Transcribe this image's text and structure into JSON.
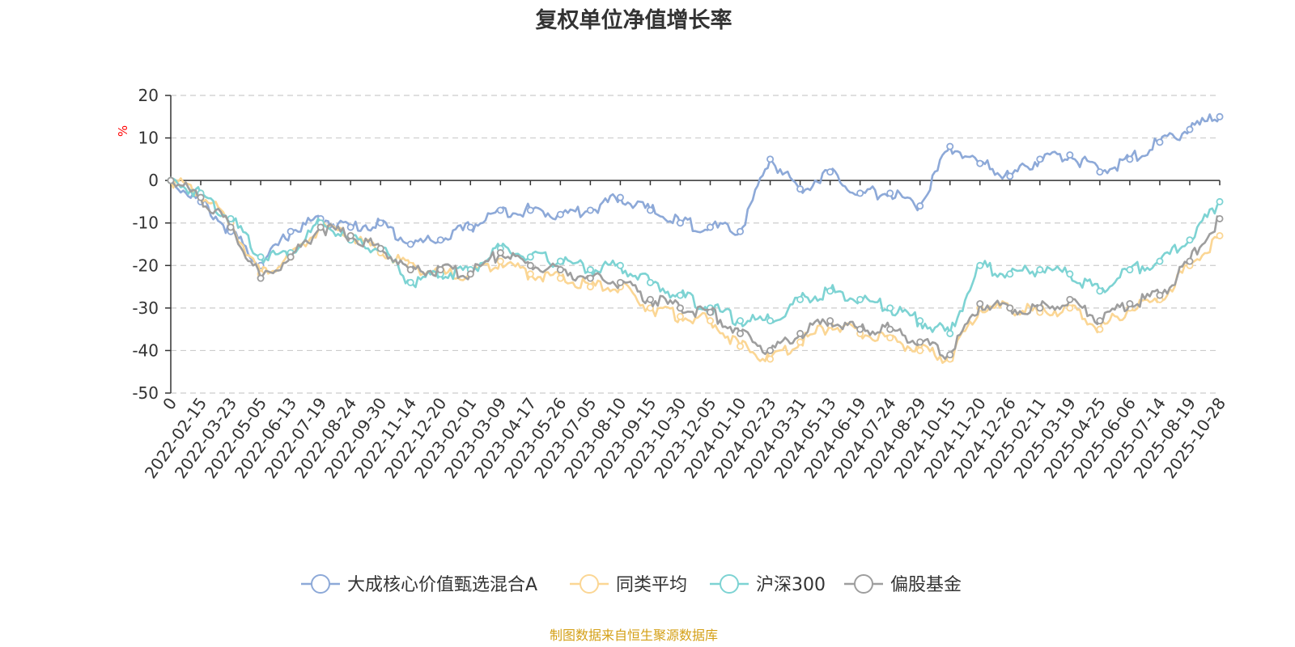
{
  "chart_data": {
    "type": "line",
    "title": "复权单位净值增长率",
    "ylabel": "%",
    "ylim": [
      -50,
      20
    ],
    "yticks": [
      20,
      10,
      0,
      -10,
      -20,
      -30,
      -40,
      -50
    ],
    "grid": true,
    "legend_position": "bottom-center",
    "x": [
      "0",
      "2022-02-15",
      "2022-03-23",
      "2022-05-05",
      "2022-06-13",
      "2022-07-19",
      "2022-08-24",
      "2022-09-30",
      "2022-11-14",
      "2022-12-20",
      "2023-02-01",
      "2023-03-09",
      "2023-04-17",
      "2023-05-26",
      "2023-07-05",
      "2023-08-10",
      "2023-09-15",
      "2023-10-30",
      "2023-12-05",
      "2024-01-10",
      "2024-02-23",
      "2024-03-31",
      "2024-05-13",
      "2024-06-19",
      "2024-07-24",
      "2024-08-29",
      "2024-10-15",
      "2024-11-20",
      "2024-12-26",
      "2025-02-11",
      "2025-03-19",
      "2025-04-25",
      "2025-06-06",
      "2025-07-14",
      "2025-08-19",
      "2025-10-28"
    ],
    "series": [
      {
        "name": "大成核心价值甄选混合A",
        "color": "#8da9d8",
        "values": [
          0,
          -5,
          -12,
          -20,
          -12,
          -9,
          -11,
          -10,
          -15,
          -14,
          -11,
          -7,
          -7,
          -8,
          -7,
          -4,
          -7,
          -10,
          -11,
          -12,
          5,
          -2,
          2,
          -3,
          -3,
          -6,
          8,
          4,
          1,
          5,
          6,
          2,
          5,
          9,
          12,
          15
        ]
      },
      {
        "name": "同类平均",
        "color": "#fbd694",
        "values": [
          0,
          -3,
          -10,
          -22,
          -18,
          -11,
          -13,
          -17,
          -20,
          -22,
          -22,
          -19,
          -22,
          -23,
          -25,
          -25,
          -30,
          -32,
          -33,
          -39,
          -42,
          -38,
          -34,
          -36,
          -37,
          -40,
          -42,
          -30,
          -30,
          -31,
          -30,
          -35,
          -30,
          -28,
          -20,
          -13
        ]
      },
      {
        "name": "沪深300",
        "color": "#7dd3d3",
        "values": [
          0,
          -3,
          -9,
          -18,
          -17,
          -10,
          -14,
          -16,
          -24,
          -22,
          -21,
          -16,
          -18,
          -19,
          -21,
          -20,
          -24,
          -27,
          -30,
          -33,
          -33,
          -28,
          -26,
          -28,
          -30,
          -33,
          -36,
          -20,
          -22,
          -21,
          -22,
          -26,
          -21,
          -19,
          -14,
          -5
        ]
      },
      {
        "name": "偏股基金",
        "color": "#9e9e9e",
        "values": [
          0,
          -4,
          -11,
          -23,
          -18,
          -11,
          -13,
          -16,
          -21,
          -21,
          -22,
          -17,
          -20,
          -21,
          -23,
          -24,
          -28,
          -30,
          -31,
          -36,
          -40,
          -36,
          -33,
          -35,
          -35,
          -38,
          -41,
          -29,
          -30,
          -30,
          -28,
          -33,
          -29,
          -27,
          -19,
          -9
        ]
      }
    ]
  },
  "footer": {
    "source": "制图数据来自恒生聚源数据库"
  },
  "colors": {
    "title": "#333333",
    "axis": "#333333",
    "grid": "#cccccc",
    "unit": "#ff0000",
    "footer": "#d4a017"
  }
}
